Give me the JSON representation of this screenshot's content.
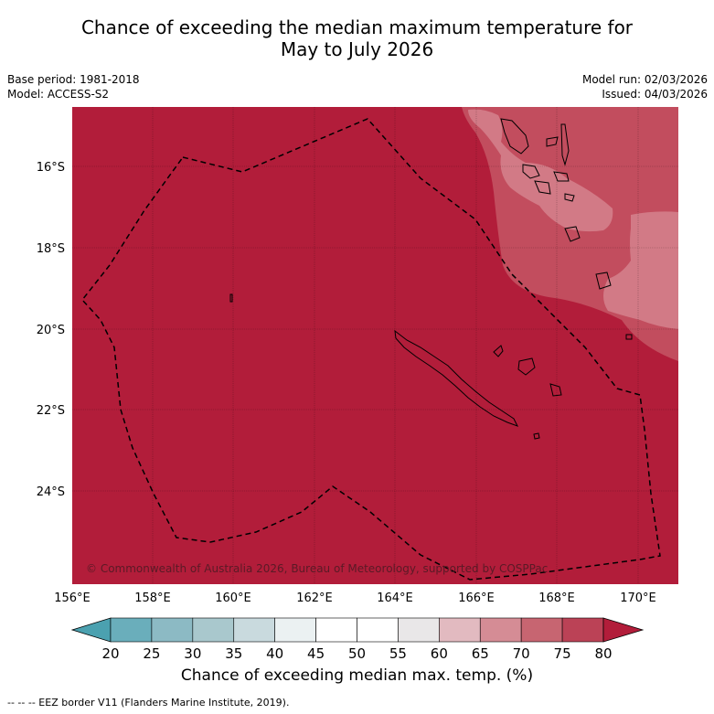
{
  "title_line1": "Chance of exceeding the median maximum temperature for",
  "title_line2": "May to July 2026",
  "meta": {
    "base_period": "Base period: 1981-2018",
    "model": "Model: ACCESS-S2",
    "model_run": "Model run: 02/03/2026",
    "issued": "Issued: 04/03/2026"
  },
  "map": {
    "lat_labels": [
      "16°S",
      "18°S",
      "20°S",
      "22°S",
      "24°S"
    ],
    "lon_labels": [
      "156°E",
      "158°E",
      "160°E",
      "162°E",
      "164°E",
      "166°E",
      "168°E",
      "170°E"
    ],
    "copyright": "© Commonwealth of Australia 2026, Bureau of Meteorology, supported by COSPPac",
    "colors": {
      "high": "#b21d3a",
      "mid": "#c24d5e",
      "low": "#d27a86",
      "border": "#000000"
    }
  },
  "colorbar": {
    "ticks": [
      "20",
      "25",
      "30",
      "35",
      "40",
      "45",
      "50",
      "55",
      "60",
      "65",
      "70",
      "75",
      "80"
    ],
    "colors": [
      "#4ba1b0",
      "#6aaebb",
      "#8cbac4",
      "#a9c8cd",
      "#c9dade",
      "#ebf1f2",
      "#ffffff",
      "#ffffff",
      "#e9e7e8",
      "#e2bac0",
      "#d58c95",
      "#c76571",
      "#bb4256",
      "#b21d3a"
    ],
    "label": "Chance of exceeding median max. temp. (%)"
  },
  "footnote": "--  --  -- EEZ border V11 (Flanders Marine Institute, 2019)."
}
